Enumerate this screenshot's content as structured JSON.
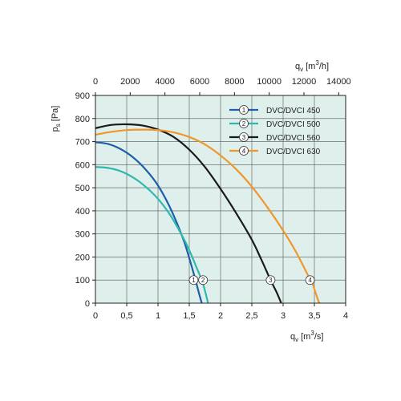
{
  "chart_data": {
    "type": "line",
    "title": "",
    "x": {
      "label": "q",
      "label_sub": "v",
      "unit": "[m3/s]",
      "unit_prefix": "[m",
      "unit_sup": "3",
      "unit_suffix": "/s]",
      "range": [
        0,
        4
      ],
      "ticks": [
        0,
        0.5,
        1,
        1.5,
        2,
        2.5,
        3,
        3.5,
        4
      ],
      "tick_labels": [
        "0",
        "0,5",
        "1",
        "1,5",
        "2",
        "2,5",
        "3",
        "3,5",
        "4"
      ]
    },
    "x_top": {
      "label": "q",
      "label_sub": "v",
      "unit": "[m3/h]",
      "unit_prefix": "[m",
      "unit_sup": "3",
      "unit_suffix": "/h]",
      "range": [
        0,
        14400
      ],
      "ticks": [
        0,
        2000,
        4000,
        6000,
        8000,
        10000,
        12000,
        14000
      ],
      "tick_labels": [
        "0",
        "2000",
        "4000",
        "6000",
        "8000",
        "10000",
        "12000",
        "14000"
      ]
    },
    "y": {
      "label": "p",
      "label_sub": "s",
      "unit": "[Pa]",
      "range": [
        0,
        900
      ],
      "ticks": [
        0,
        100,
        200,
        300,
        400,
        500,
        600,
        700,
        800,
        900
      ],
      "tick_labels": [
        "0",
        "100",
        "200",
        "300",
        "400",
        "500",
        "600",
        "700",
        "800",
        "900"
      ]
    },
    "grid": true,
    "legend_position": "top-right",
    "series": [
      {
        "name": "DVC/DVCI 450",
        "marker": "1",
        "color": "#1f5fa8",
        "points": [
          [
            0,
            697
          ],
          [
            0.2,
            690
          ],
          [
            0.4,
            668
          ],
          [
            0.6,
            632
          ],
          [
            0.8,
            580
          ],
          [
            1.0,
            510
          ],
          [
            1.2,
            410
          ],
          [
            1.4,
            280
          ],
          [
            1.5,
            195
          ],
          [
            1.6,
            100
          ],
          [
            1.65,
            48
          ],
          [
            1.7,
            0
          ]
        ]
      },
      {
        "name": "DVC/DVCI 500",
        "marker": "2",
        "color": "#2fb8ae",
        "points": [
          [
            0,
            590
          ],
          [
            0.2,
            586
          ],
          [
            0.4,
            572
          ],
          [
            0.6,
            545
          ],
          [
            0.8,
            505
          ],
          [
            1.0,
            452
          ],
          [
            1.2,
            380
          ],
          [
            1.4,
            285
          ],
          [
            1.5,
            230
          ],
          [
            1.6,
            165
          ],
          [
            1.7,
            100
          ],
          [
            1.75,
            55
          ],
          [
            1.8,
            0
          ]
        ]
      },
      {
        "name": "DVC/DVCI 560",
        "marker": "3",
        "color": "#1a1a1a",
        "points": [
          [
            0,
            758
          ],
          [
            0.25,
            772
          ],
          [
            0.5,
            775
          ],
          [
            0.75,
            770
          ],
          [
            1.0,
            752
          ],
          [
            1.25,
            720
          ],
          [
            1.5,
            665
          ],
          [
            1.75,
            590
          ],
          [
            2.0,
            495
          ],
          [
            2.25,
            390
          ],
          [
            2.5,
            275
          ],
          [
            2.65,
            190
          ],
          [
            2.8,
            100
          ],
          [
            2.9,
            45
          ],
          [
            2.97,
            0
          ]
        ]
      },
      {
        "name": "DVC/DVCI 630",
        "marker": "4",
        "color": "#f0962a",
        "points": [
          [
            0,
            730
          ],
          [
            0.25,
            742
          ],
          [
            0.5,
            750
          ],
          [
            0.75,
            752
          ],
          [
            1.0,
            750
          ],
          [
            1.25,
            740
          ],
          [
            1.5,
            720
          ],
          [
            1.75,
            688
          ],
          [
            2.0,
            640
          ],
          [
            2.25,
            580
          ],
          [
            2.5,
            505
          ],
          [
            2.75,
            415
          ],
          [
            3.0,
            315
          ],
          [
            3.2,
            225
          ],
          [
            3.4,
            120
          ],
          [
            3.45,
            100
          ],
          [
            3.55,
            20
          ],
          [
            3.58,
            0
          ]
        ]
      }
    ],
    "annotations": [
      {
        "marker": "1",
        "x": 1.57,
        "y": 100
      },
      {
        "marker": "2",
        "x": 1.72,
        "y": 100
      },
      {
        "marker": "3",
        "x": 2.8,
        "y": 100
      },
      {
        "marker": "4",
        "x": 3.43,
        "y": 100
      }
    ]
  }
}
